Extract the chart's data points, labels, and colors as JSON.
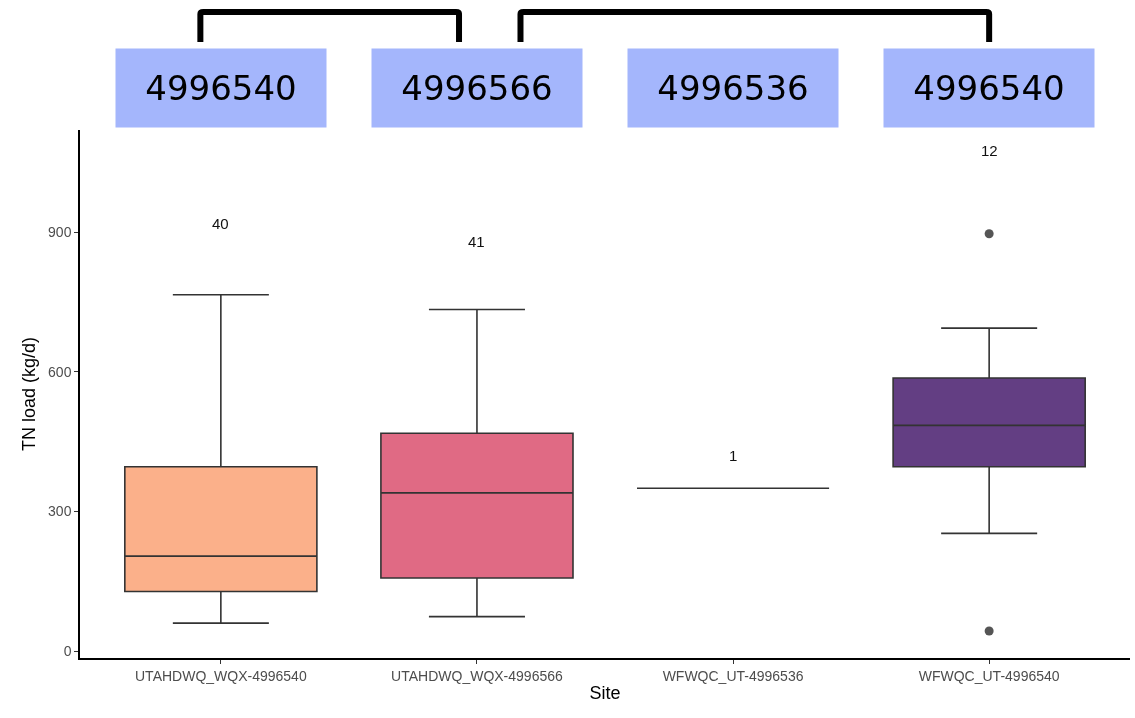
{
  "chart_data": {
    "type": "box",
    "xlabel": "Site",
    "ylabel": "TN load (kg/d)",
    "categories": [
      "UTAHDWQ_WQX-4996540",
      "UTAHDWQ_WQX-4996566",
      "WFWQC_UT-4996536",
      "WFWQC_UT-4996540"
    ],
    "colors": [
      "#fbb08a",
      "#e06a84",
      "#333333",
      "#633e83"
    ],
    "boxes": [
      {
        "low": 60,
        "q1": 128,
        "median": 204,
        "q3": 396,
        "high": 766
      },
      {
        "low": 74,
        "q1": 157,
        "median": 340,
        "q3": 468,
        "high": 734
      },
      {
        "low": 350,
        "q1": 350,
        "median": 350,
        "q3": 350,
        "high": 350
      },
      {
        "low": 253,
        "q1": 396,
        "median": 485,
        "q3": 587,
        "high": 694,
        "outliers": [
          897,
          43
        ]
      }
    ],
    "ylim": [
      -15,
      1120
    ],
    "yticks": [
      0,
      300,
      600,
      900
    ],
    "grid": false,
    "annotations": [
      "4996540",
      "4996566",
      "4996536",
      "4996540",
      "40",
      "41",
      "1",
      "12"
    ]
  }
}
